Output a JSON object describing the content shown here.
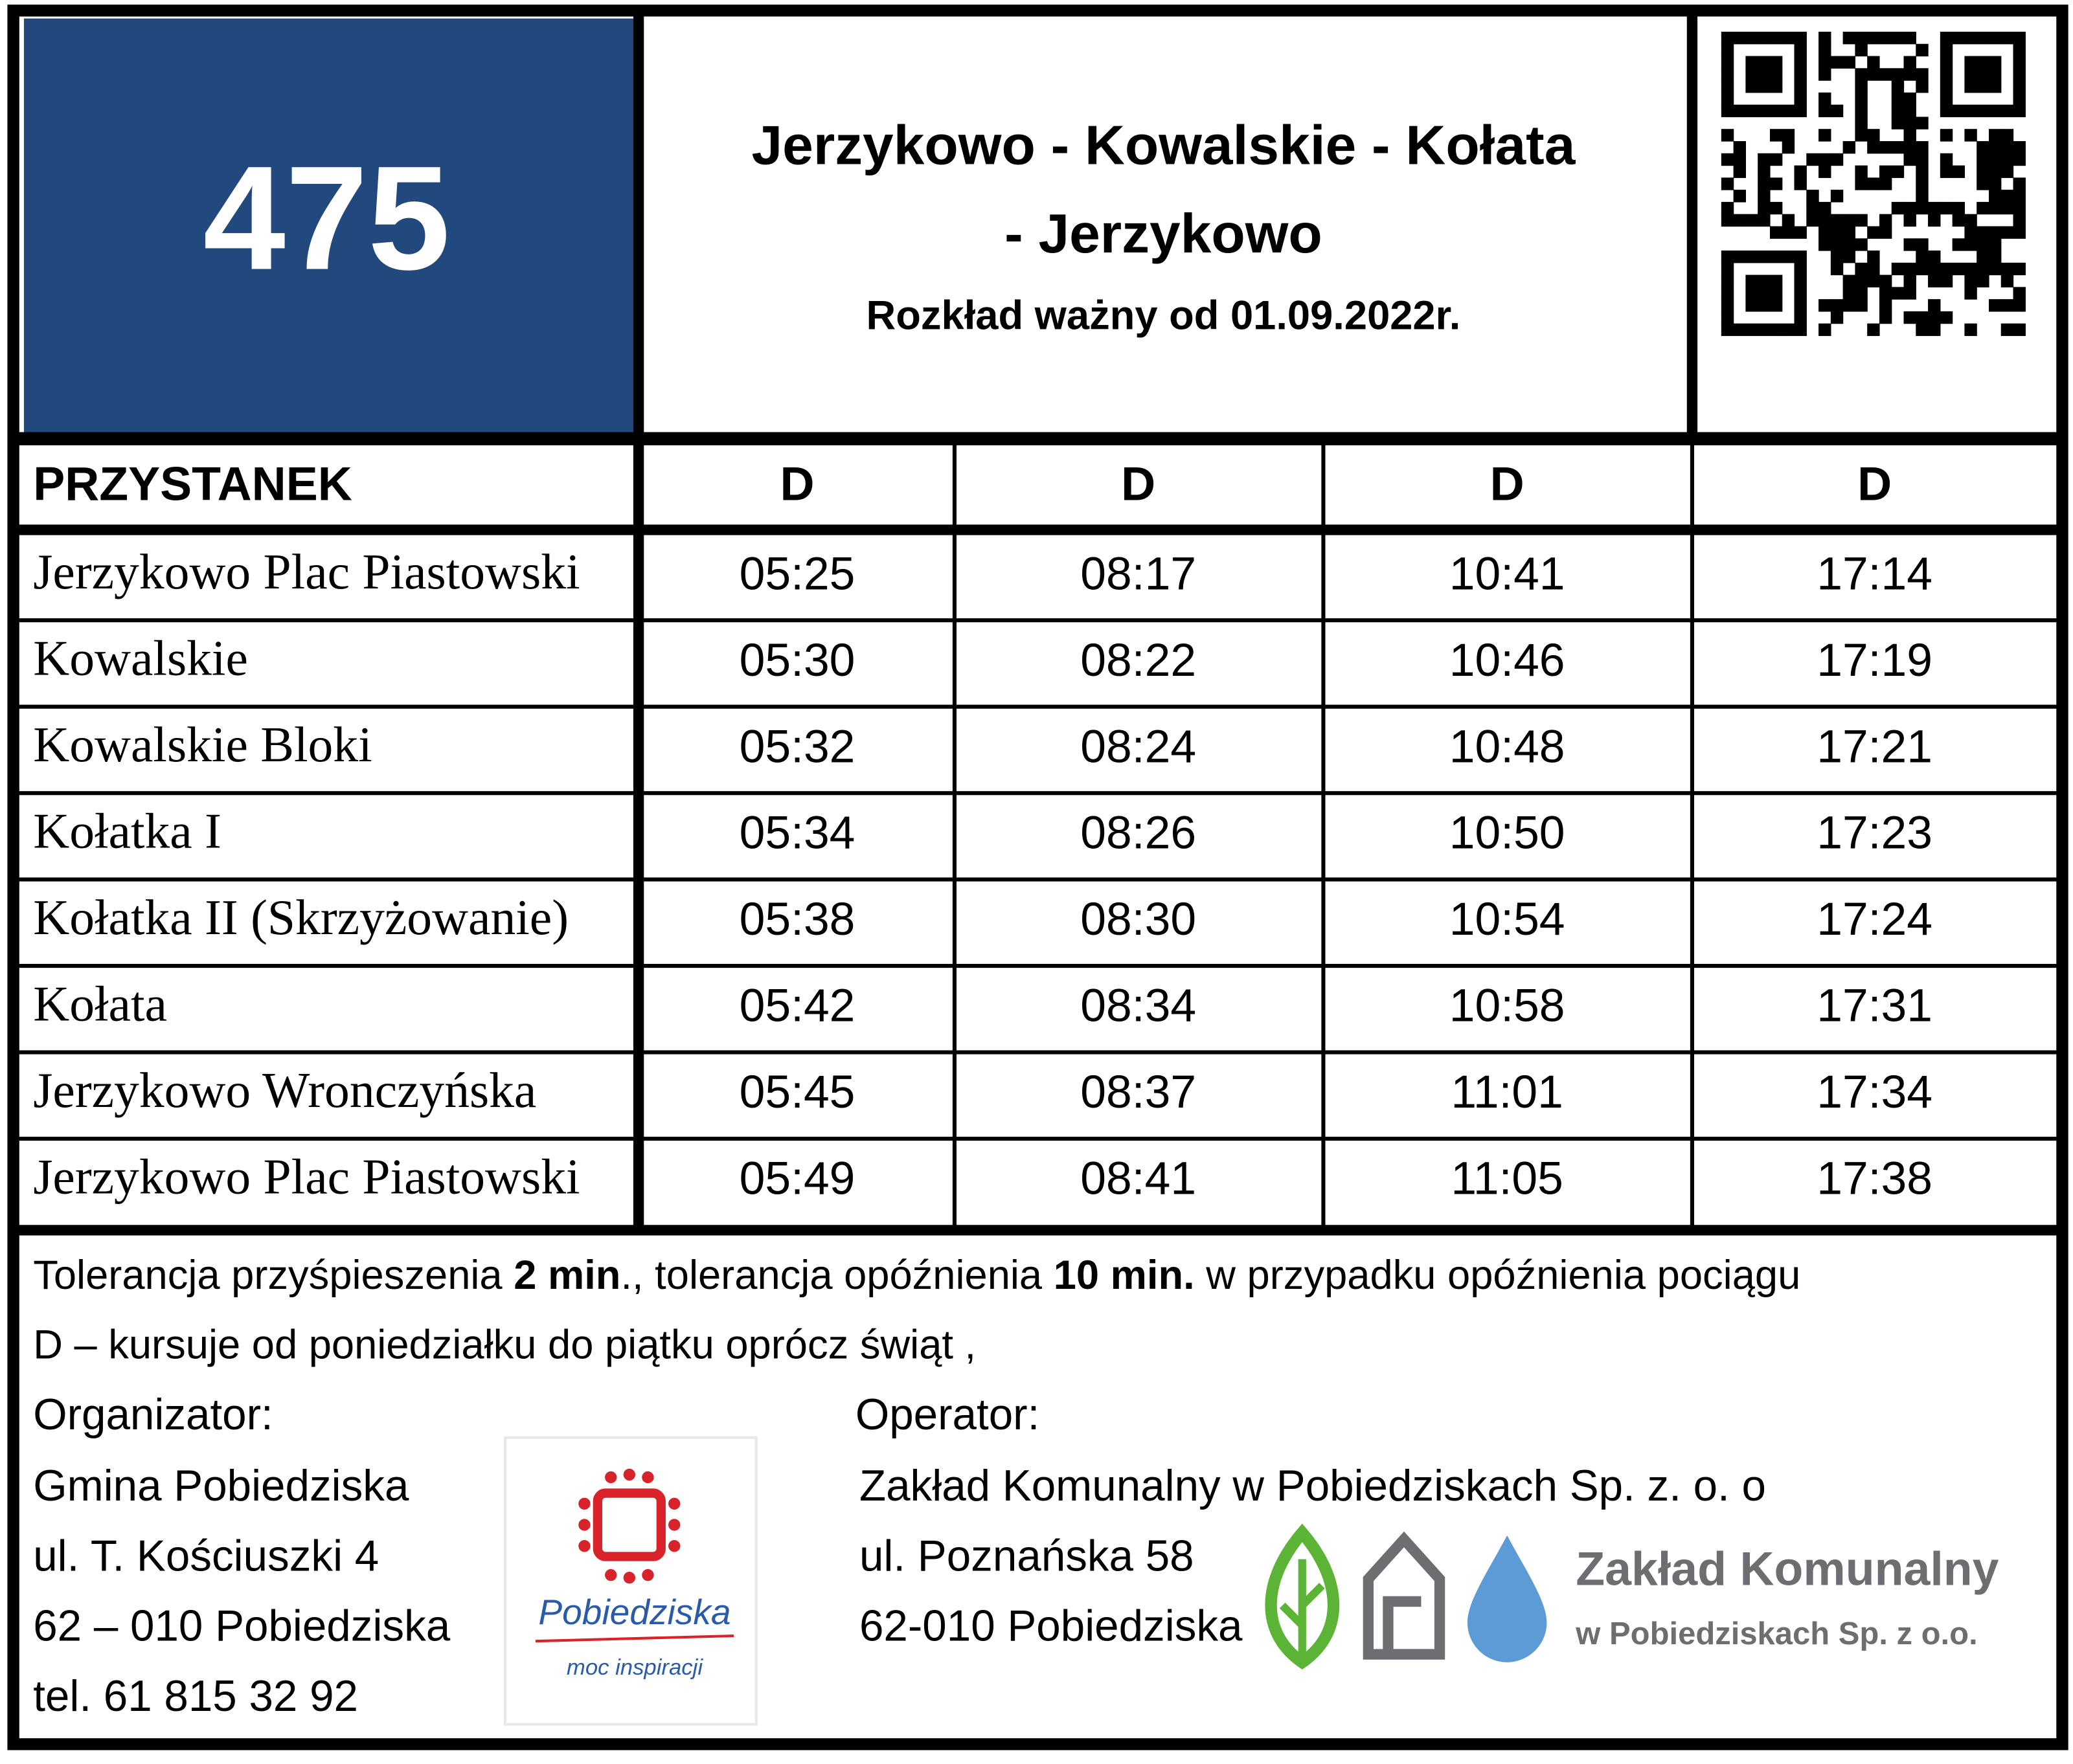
{
  "header": {
    "route": "475",
    "title_line1": "Jerzykowo - Kowalskie - Kołata",
    "title_line2": "- Jerzykowo",
    "validity": "Rozkład ważny od 01.09.2022r."
  },
  "table": {
    "columns": [
      "PRZYSTANEK",
      "D",
      "D",
      "D",
      "D"
    ],
    "rows": [
      [
        "Jerzykowo Plac Piastowski",
        "05:25",
        "08:17",
        "10:41",
        "17:14"
      ],
      [
        "Kowalskie",
        "05:30",
        "08:22",
        "10:46",
        "17:19"
      ],
      [
        "Kowalskie Bloki",
        "05:32",
        "08:24",
        "10:48",
        "17:21"
      ],
      [
        "Kołatka I",
        "05:34",
        "08:26",
        "10:50",
        "17:23"
      ],
      [
        "Kołatka II (Skrzyżowanie)",
        "05:38",
        "08:30",
        "10:54",
        "17:24"
      ],
      [
        "Kołata",
        "05:42",
        "08:34",
        "10:58",
        "17:31"
      ],
      [
        "Jerzykowo Wronczyńska",
        "05:45",
        "08:37",
        "11:01",
        "17:34"
      ],
      [
        "Jerzykowo Plac Piastowski",
        "05:49",
        "08:41",
        "11:05",
        "17:38"
      ]
    ]
  },
  "footer": {
    "tolerance": [
      {
        "text": "Tolerancja przyśpieszenia ",
        "bold": false
      },
      {
        "text": "2 min",
        "bold": true
      },
      {
        "text": "., tolerancja opóźnienia ",
        "bold": false
      },
      {
        "text": "10 min.",
        "bold": true
      },
      {
        "text": " w przypadku opóźnienia pociągu",
        "bold": false
      }
    ],
    "legend": "D – kursuje od poniedziałku do piątku oprócz świąt ,",
    "organizer": {
      "label": "Organizator:",
      "lines": [
        "Gmina Pobiedziska",
        "ul. T. Kościuszki 4",
        "62 – 010 Pobiedziska",
        "tel. 61 815 32 92"
      ]
    },
    "operator": {
      "label": "Operator:",
      "lines": [
        "Zakład Komunalny w Pobiedziskach  Sp. z. o. o",
        "ul. Poznańska 58",
        "62-010 Pobiedziska"
      ]
    },
    "logo_town": {
      "name": "Pobiedziska",
      "slogan": "moc inspiracji"
    },
    "logo_operator": {
      "name": "Zakład Komunalny",
      "subtitle": "w Pobiedziskach Sp. z o.o."
    }
  }
}
